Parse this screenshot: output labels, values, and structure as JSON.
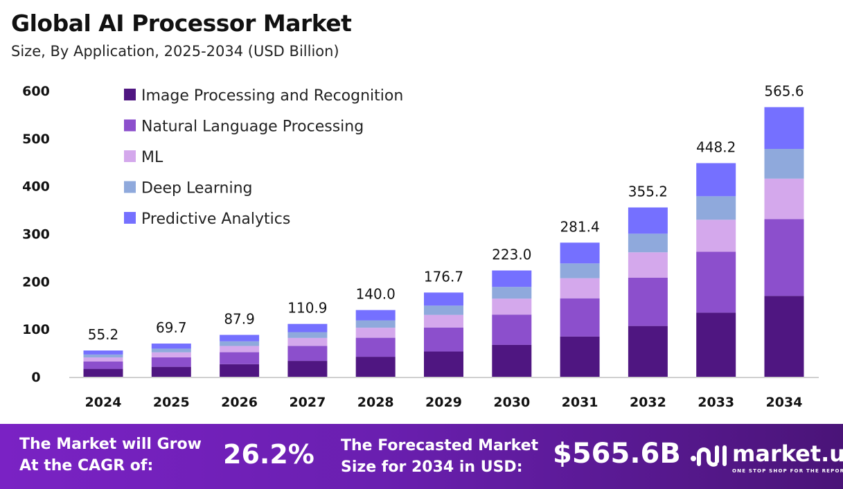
{
  "chart_data": {
    "type": "bar",
    "stacked": true,
    "title": "Global AI Processor Market",
    "subtitle": "Size, By Application, 2025-2034 (USD Billion)",
    "categories": [
      "2024",
      "2025",
      "2026",
      "2027",
      "2028",
      "2029",
      "2030",
      "2031",
      "2032",
      "2033",
      "2034"
    ],
    "totals": [
      "55.2",
      "69.7",
      "87.9",
      "110.9",
      "140.0",
      "176.7",
      "223.0",
      "281.4",
      "355.2",
      "448.2",
      "565.6"
    ],
    "series": [
      {
        "name": "Image Processing and Recognition",
        "color": "#4f1681",
        "values": [
          16.6,
          20.9,
          26.4,
          33.3,
          42.0,
          53.0,
          66.9,
          84.4,
          106.6,
          134.5,
          169.7
        ]
      },
      {
        "name": "Natural Language Processing",
        "color": "#8c4fcc",
        "values": [
          15.7,
          19.9,
          25.1,
          31.6,
          39.9,
          50.4,
          63.6,
          80.2,
          101.2,
          127.7,
          161.2
        ]
      },
      {
        "name": "ML",
        "color": "#d4a8ec",
        "values": [
          8.3,
          10.5,
          13.2,
          16.6,
          21.0,
          26.5,
          33.5,
          42.2,
          53.3,
          67.2,
          84.8
        ]
      },
      {
        "name": "Deep Learning",
        "color": "#8fa9dc",
        "values": [
          6.1,
          7.7,
          9.7,
          12.2,
          15.4,
          19.4,
          24.5,
          31.0,
          39.1,
          49.3,
          62.2
        ]
      },
      {
        "name": "Predictive Analytics",
        "color": "#7570ff",
        "values": [
          8.5,
          10.7,
          13.5,
          17.2,
          21.7,
          27.4,
          34.5,
          43.6,
          55.0,
          69.5,
          87.7
        ]
      }
    ],
    "yticks": [
      "0",
      "100",
      "200",
      "300",
      "400",
      "500",
      "600"
    ],
    "ylim": [
      0,
      600
    ],
    "legend": "top-left",
    "grid": false
  },
  "footer": {
    "cagr_label_1": "The Market will Grow",
    "cagr_label_2": "At the CAGR of:",
    "cagr_value": "26.2%",
    "forecast_label_1": "The Forecasted Market",
    "forecast_label_2": "Size for 2034 in USD:",
    "forecast_value": "$565.6B",
    "logo_name": "market.us",
    "logo_tagline": "ONE STOP SHOP FOR THE REPORTS"
  }
}
